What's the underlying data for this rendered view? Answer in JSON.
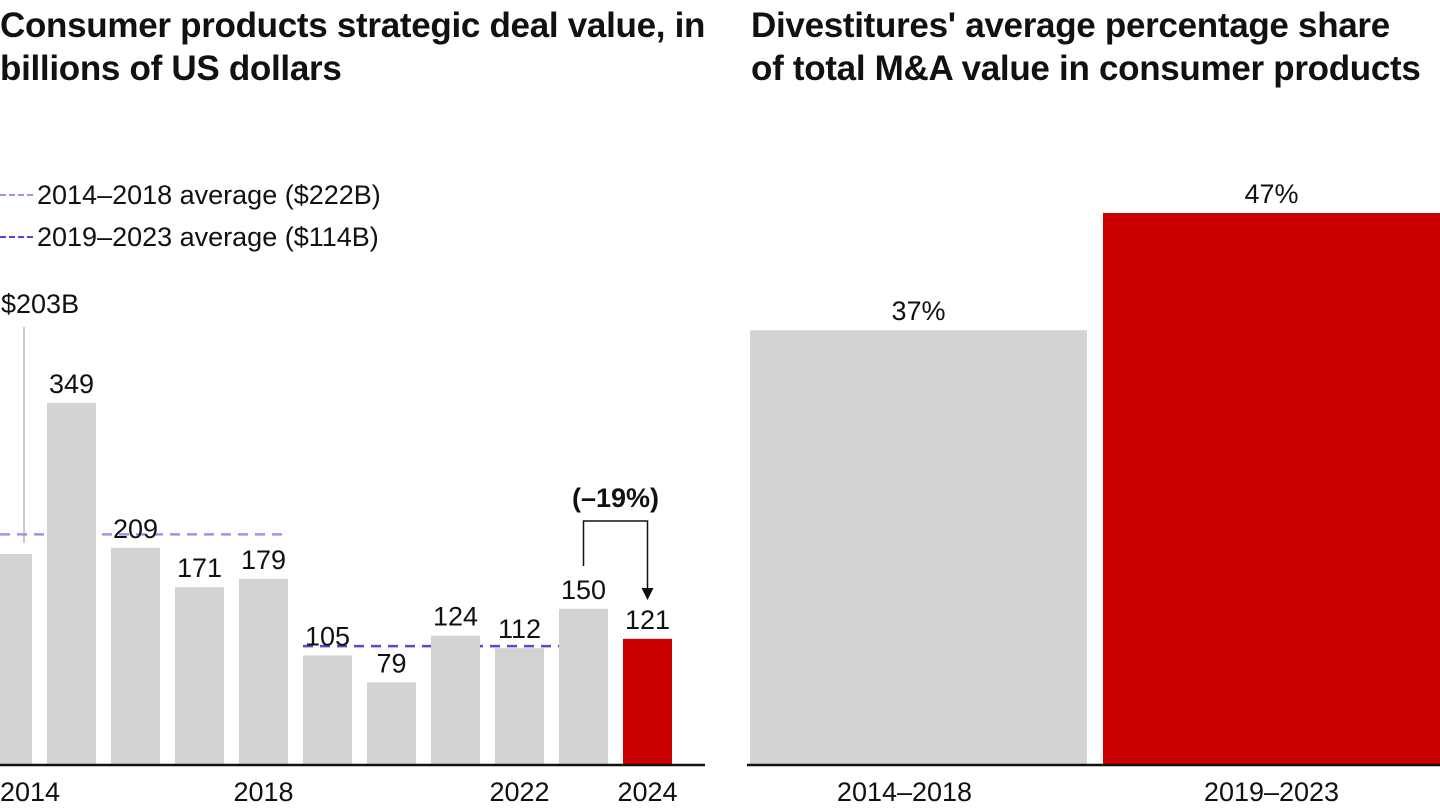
{
  "colors": {
    "bar_default": "#d3d3d2",
    "bar_highlight": "#cc0000",
    "avg_line_2014_2018": "#9f93ee",
    "avg_line_2019_2023": "#5a46d6",
    "axis": "#111111",
    "text": "#111111",
    "leader_line": "#9a9a9a"
  },
  "chart_data": [
    {
      "type": "bar",
      "title": "Consumer products strategic deal value, in billions of US dollars",
      "xlabel": "",
      "ylabel": "",
      "categories": [
        "2014",
        "2015",
        "2016",
        "2017",
        "2018",
        "2019",
        "2020",
        "2021",
        "2022",
        "2023",
        "2024"
      ],
      "values": [
        203,
        349,
        209,
        171,
        179,
        105,
        79,
        124,
        112,
        150,
        121
      ],
      "data_labels": [
        "$203B",
        "349",
        "209",
        "171",
        "179",
        "105",
        "79",
        "124",
        "112",
        "150",
        "121"
      ],
      "highlight_category": "2024",
      "x_tick_labels": [
        {
          "category": "2014",
          "label": "2014"
        },
        {
          "category": "2018",
          "label": "2018"
        },
        {
          "category": "2022",
          "label": "2022"
        },
        {
          "category": "2024",
          "label": "2024"
        }
      ],
      "reference_lines": [
        {
          "label": "2014–2018 average ($222B)",
          "value": 222,
          "from": "2014",
          "to": "2018",
          "style": "dashed",
          "color_key": "avg_line_2014_2018"
        },
        {
          "label": "2019–2023 average ($114B)",
          "value": 114,
          "from": "2019",
          "to": "2023",
          "style": "dashed",
          "color_key": "avg_line_2019_2023"
        }
      ],
      "annotation": {
        "text": "(–19%)",
        "from": "2023",
        "to": "2024",
        "style": "bracket-arrow"
      },
      "ylim": [
        0,
        349
      ],
      "grid": false,
      "legend": "top-left"
    },
    {
      "type": "bar",
      "title": "Divestitures' average percentage share of total M&A value in consumer products",
      "xlabel": "",
      "ylabel": "",
      "categories": [
        "2014–2018",
        "2019–2023"
      ],
      "values": [
        37,
        47
      ],
      "data_labels": [
        "37%",
        "47%"
      ],
      "highlight_category": "2019–2023",
      "ylim": [
        0,
        60
      ],
      "grid": false,
      "legend": "none"
    }
  ]
}
